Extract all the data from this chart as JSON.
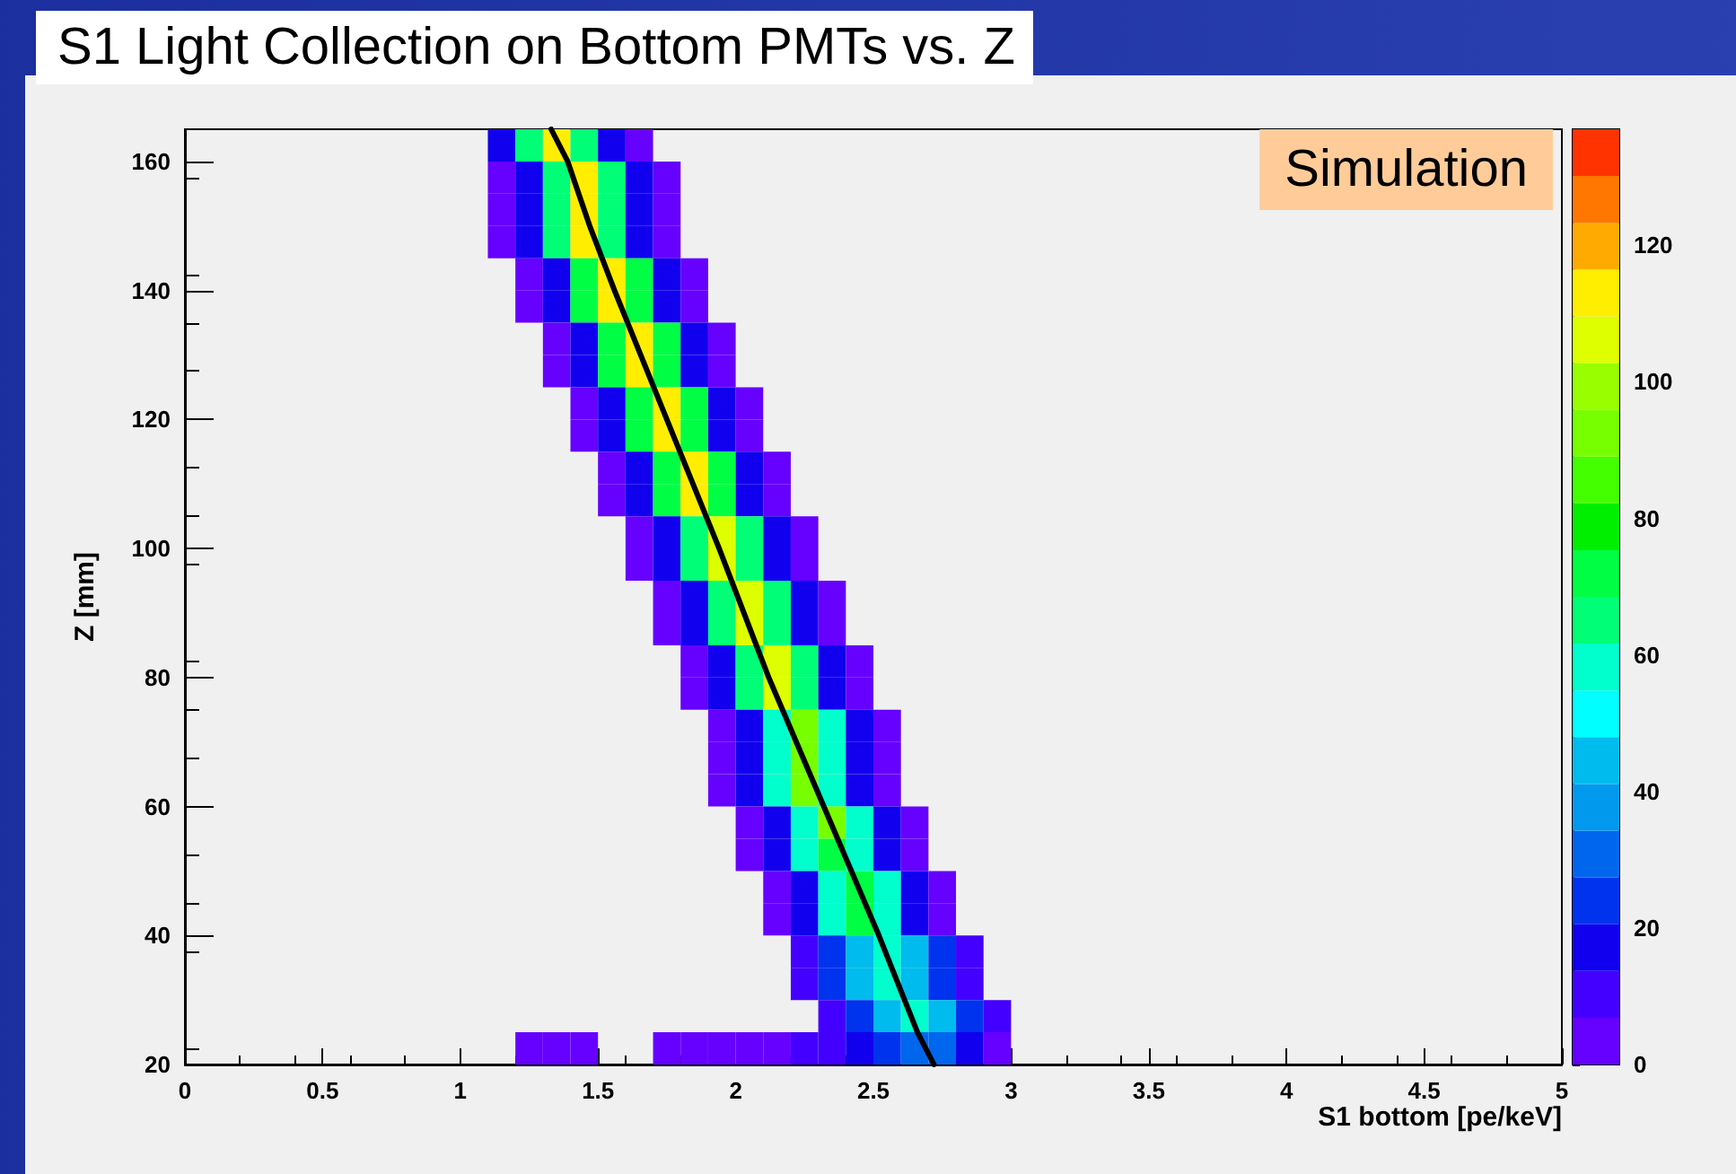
{
  "chart_data": {
    "type": "heatmap",
    "title": "S1 Light Collection on Bottom PMTs vs. Z",
    "xlabel": "S1 bottom [pe/keV]",
    "ylabel": "Z [mm]",
    "annotations": [
      "Simulation"
    ],
    "x": [
      1.15,
      1.25,
      1.35,
      1.45,
      1.55,
      1.65,
      1.75,
      1.85,
      1.95,
      2.05,
      2.15,
      2.25,
      2.35,
      2.45,
      2.55,
      2.65,
      2.75,
      2.85,
      2.95
    ],
    "cells": [
      [
        15,
        66,
        110,
        66,
        15,
        3,
        null,
        null,
        null,
        null,
        null,
        null,
        null,
        null,
        null,
        null,
        null,
        null,
        null
      ],
      [
        3,
        15,
        66,
        110,
        66,
        15,
        3,
        null,
        null,
        null,
        null,
        null,
        null,
        null,
        null,
        null,
        null,
        null,
        null
      ],
      [
        3,
        15,
        66,
        110,
        66,
        15,
        3,
        null,
        null,
        null,
        null,
        null,
        null,
        null,
        null,
        null,
        null,
        null,
        null
      ],
      [
        3,
        15,
        66,
        110,
        66,
        15,
        3,
        null,
        null,
        null,
        null,
        null,
        null,
        null,
        null,
        null,
        null,
        null,
        null
      ],
      [
        null,
        3,
        15,
        69,
        115,
        69,
        15,
        3,
        null,
        null,
        null,
        null,
        null,
        null,
        null,
        null,
        null,
        null,
        null
      ],
      [
        null,
        3,
        15,
        69,
        115,
        69,
        15,
        3,
        null,
        null,
        null,
        null,
        null,
        null,
        null,
        null,
        null,
        null,
        null
      ],
      [
        null,
        null,
        3,
        15,
        69,
        115,
        69,
        15,
        3,
        null,
        null,
        null,
        null,
        null,
        null,
        null,
        null,
        null,
        null
      ],
      [
        null,
        null,
        3,
        15,
        69,
        115,
        69,
        15,
        3,
        null,
        null,
        null,
        null,
        null,
        null,
        null,
        null,
        null,
        null
      ],
      [
        null,
        null,
        null,
        3,
        15,
        69,
        115,
        69,
        15,
        3,
        null,
        null,
        null,
        null,
        null,
        null,
        null,
        null,
        null
      ],
      [
        null,
        null,
        null,
        3,
        15,
        69,
        115,
        69,
        15,
        3,
        null,
        null,
        null,
        null,
        null,
        null,
        null,
        null,
        null
      ],
      [
        null,
        null,
        null,
        null,
        3,
        15,
        69,
        115,
        69,
        15,
        3,
        null,
        null,
        null,
        null,
        null,
        null,
        null,
        null
      ],
      [
        null,
        null,
        null,
        null,
        3,
        15,
        69,
        115,
        69,
        15,
        3,
        null,
        null,
        null,
        null,
        null,
        null,
        null,
        null
      ],
      [
        null,
        null,
        null,
        null,
        null,
        3,
        16,
        63,
        105,
        63,
        16,
        3,
        null,
        null,
        null,
        null,
        null,
        null,
        null
      ],
      [
        null,
        null,
        null,
        null,
        null,
        3,
        16,
        63,
        105,
        63,
        16,
        3,
        null,
        null,
        null,
        null,
        null,
        null,
        null
      ],
      [
        null,
        null,
        null,
        null,
        null,
        null,
        3,
        16,
        63,
        105,
        63,
        16,
        3,
        null,
        null,
        null,
        null,
        null,
        null
      ],
      [
        null,
        null,
        null,
        null,
        null,
        null,
        3,
        16,
        63,
        105,
        63,
        16,
        3,
        null,
        null,
        null,
        null,
        null,
        null
      ],
      [
        null,
        null,
        null,
        null,
        null,
        null,
        null,
        3,
        16,
        63,
        105,
        63,
        16,
        3,
        null,
        null,
        null,
        null,
        null
      ],
      [
        null,
        null,
        null,
        null,
        null,
        null,
        null,
        3,
        16,
        63,
        105,
        63,
        16,
        3,
        null,
        null,
        null,
        null,
        null
      ],
      [
        null,
        null,
        null,
        null,
        null,
        null,
        null,
        null,
        4,
        18,
        60,
        90,
        60,
        18,
        4,
        null,
        null,
        null,
        null
      ],
      [
        null,
        null,
        null,
        null,
        null,
        null,
        null,
        null,
        4,
        18,
        60,
        90,
        60,
        18,
        4,
        null,
        null,
        null,
        null
      ],
      [
        null,
        null,
        null,
        null,
        null,
        null,
        null,
        null,
        4,
        18,
        60,
        90,
        60,
        18,
        4,
        null,
        null,
        null,
        null
      ],
      [
        null,
        null,
        null,
        null,
        null,
        null,
        null,
        null,
        null,
        4,
        18,
        60,
        90,
        60,
        18,
        4,
        null,
        null,
        null
      ],
      [
        null,
        null,
        null,
        null,
        null,
        null,
        null,
        null,
        null,
        6,
        20,
        55,
        75,
        55,
        20,
        6,
        null,
        null,
        null
      ],
      [
        null,
        null,
        null,
        null,
        null,
        null,
        null,
        null,
        null,
        null,
        6,
        20,
        55,
        75,
        55,
        20,
        6,
        null,
        null
      ],
      [
        null,
        null,
        null,
        null,
        null,
        null,
        null,
        null,
        null,
        null,
        6,
        20,
        55,
        75,
        55,
        20,
        6,
        null,
        null
      ],
      [
        null,
        null,
        null,
        null,
        null,
        null,
        null,
        null,
        null,
        null,
        null,
        8,
        22,
        45,
        55,
        45,
        22,
        8,
        null
      ],
      [
        null,
        null,
        null,
        null,
        null,
        null,
        null,
        null,
        null,
        null,
        null,
        8,
        22,
        45,
        55,
        45,
        22,
        8,
        null
      ],
      [
        null,
        null,
        null,
        null,
        null,
        null,
        null,
        null,
        null,
        null,
        null,
        null,
        8,
        22,
        45,
        55,
        45,
        22,
        8
      ],
      [
        null,
        2,
        2,
        1,
        null,
        null,
        2,
        3,
        3,
        4,
        5,
        8,
        12,
        18,
        25,
        30,
        28,
        20,
        5
      ]
    ],
    "series": [
      {
        "type": "line",
        "color": "#000000",
        "x": [
          1.33,
          1.39,
          1.47,
          1.56,
          1.75,
          1.94,
          2.12,
          2.32,
          2.52,
          2.66,
          2.72
        ],
        "values": [
          165,
          160,
          150,
          140,
          120,
          100,
          80,
          60,
          40,
          25,
          20
        ]
      }
    ],
    "colors": [
      "#6600ff",
      "#4400ff",
      "#1100ee",
      "#0033ee",
      "#0066ee",
      "#0099ee",
      "#00bbee",
      "#00ffff",
      "#00ffcc",
      "#00ff77",
      "#00ff44",
      "#00ee00",
      "#44ff00",
      "#77ff00",
      "#99ff00",
      "#ddff00",
      "#ffee00",
      "#ffaa00",
      "#ff7700",
      "#ff3300"
    ],
    "clim": [
      0,
      137
    ],
    "cticks": [
      0,
      20,
      40,
      60,
      80,
      100,
      120
    ],
    "xlim": [
      0,
      5
    ],
    "xticks": [
      0,
      0.5,
      1,
      1.5,
      2,
      2.5,
      3,
      3.5,
      4,
      4.5,
      5
    ],
    "ylim": [
      20,
      165
    ],
    "yticks": [
      20,
      40,
      60,
      80,
      100,
      120,
      140,
      160
    ],
    "marker": "none",
    "line_style": "solid"
  }
}
